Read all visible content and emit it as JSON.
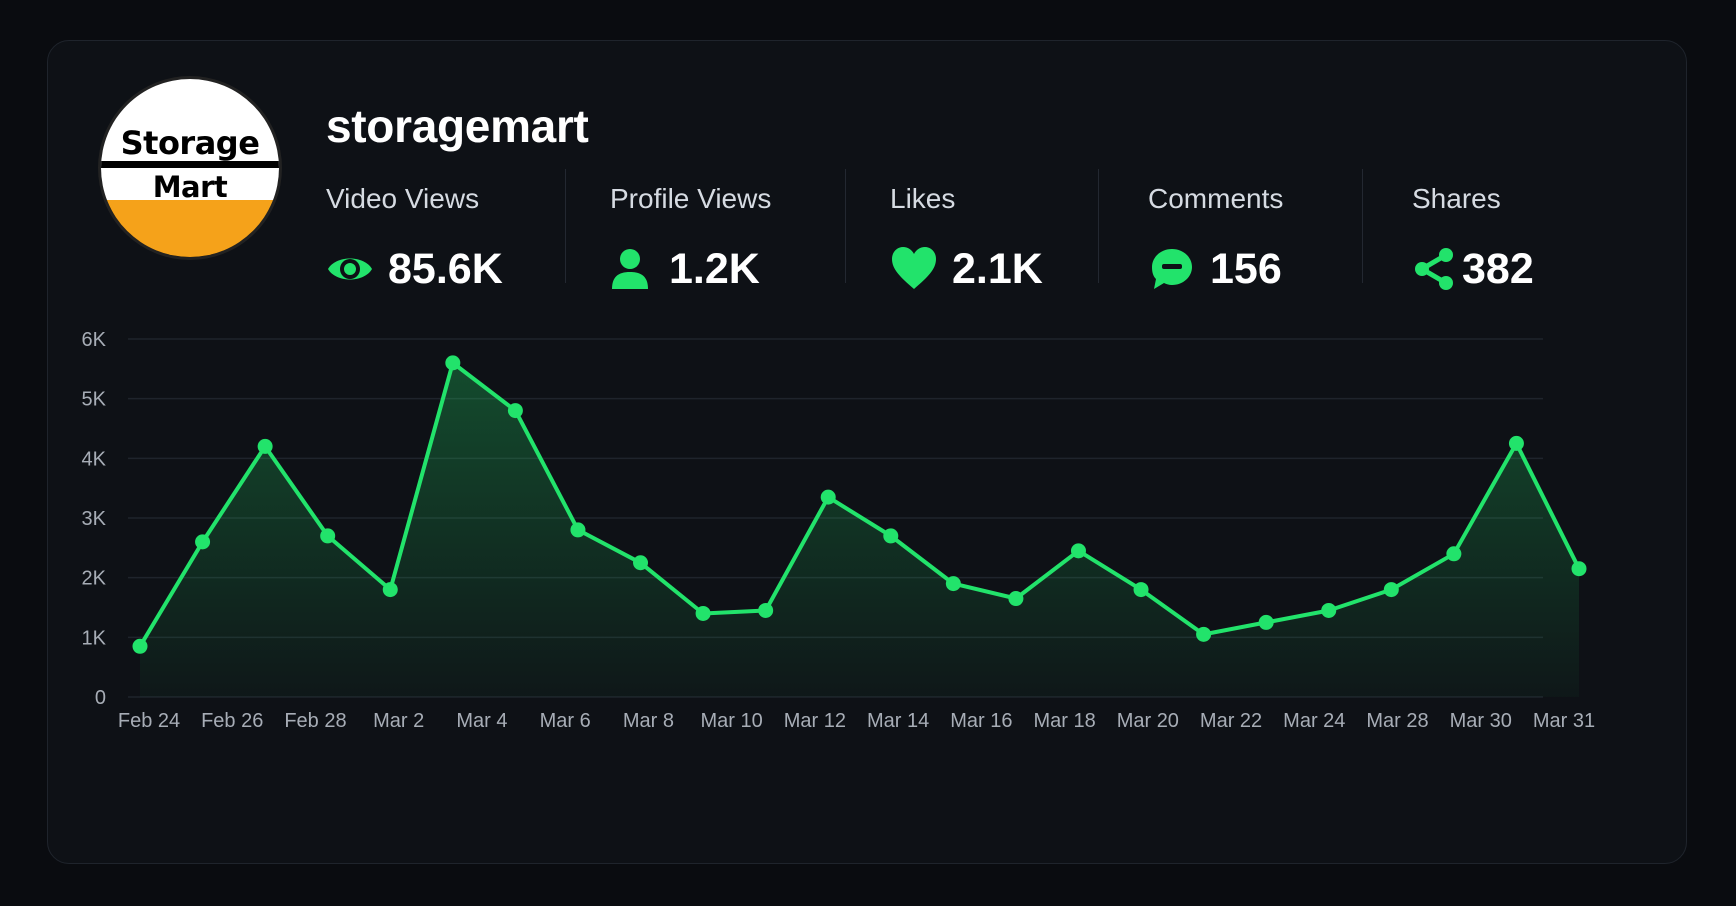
{
  "profile": {
    "username": "storagemart",
    "logo_line1": "Storage",
    "logo_line2": "Mart"
  },
  "stats": [
    {
      "label": "Video Views",
      "value": "85.6K",
      "icon": "eye-icon"
    },
    {
      "label": "Profile Views",
      "value": "1.2K",
      "icon": "person-icon"
    },
    {
      "label": "Likes",
      "value": "2.1K",
      "icon": "heart-icon"
    },
    {
      "label": "Comments",
      "value": "156",
      "icon": "comment-icon"
    },
    {
      "label": "Shares",
      "value": "382",
      "icon": "share-icon"
    }
  ],
  "colors": {
    "accent": "#22e36b",
    "background": "#0a0c10",
    "card": "#0e1116",
    "logo_orange": "#f5a21a"
  },
  "chart_data": {
    "type": "area",
    "x_labels": [
      "Feb 24",
      "Feb 26",
      "Feb 28",
      "Mar 2",
      "Mar 4",
      "Mar 6",
      "Mar 8",
      "Mar 10",
      "Mar 12",
      "Mar 14",
      "Mar 16",
      "Mar 18",
      "Mar 20",
      "Mar 22",
      "Mar 24",
      "Mar 28",
      "Mar 30",
      "Mar 31"
    ],
    "y_ticks": [
      "0",
      "1K",
      "2K",
      "3K",
      "4K",
      "5K",
      "6K"
    ],
    "ylim": [
      0,
      6000
    ],
    "grid": true,
    "series": [
      {
        "values": [
          850,
          2600,
          4200,
          2700,
          1800,
          5600,
          4800,
          2800,
          2250,
          1400,
          1450,
          3350,
          2700,
          1900,
          1650,
          2450,
          1800,
          1050,
          1250,
          1450,
          1800,
          2400,
          4250,
          2150
        ]
      }
    ]
  }
}
